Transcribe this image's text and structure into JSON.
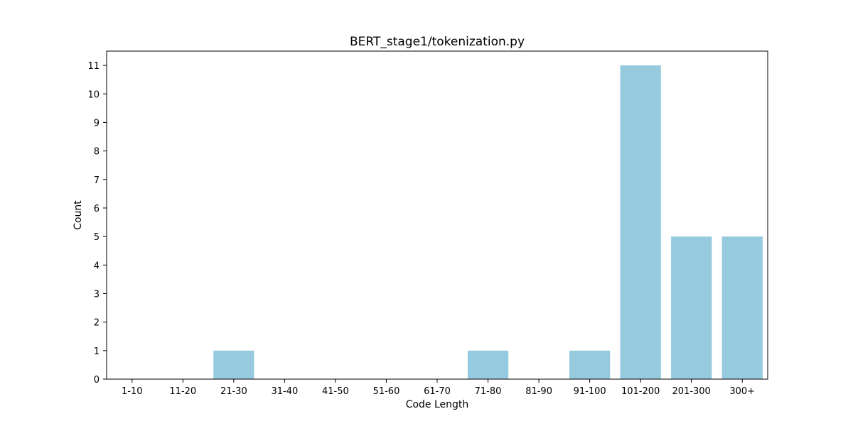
{
  "chart_data": {
    "type": "bar",
    "title": "BERT_stage1/tokenization.py",
    "xlabel": "Code Length",
    "ylabel": "Count",
    "categories": [
      "1-10",
      "11-20",
      "21-30",
      "31-40",
      "41-50",
      "51-60",
      "61-70",
      "71-80",
      "81-90",
      "91-100",
      "101-200",
      "201-300",
      "300+"
    ],
    "values": [
      0,
      0,
      1,
      0,
      0,
      0,
      0,
      1,
      0,
      1,
      11,
      5,
      5
    ],
    "ylim": [
      0,
      11.5
    ],
    "yticks": [
      "0",
      "1",
      "2",
      "3",
      "4",
      "5",
      "6",
      "7",
      "8",
      "9",
      "10",
      "11"
    ],
    "grid": false,
    "colors": {
      "bar": "#96cade",
      "axis": "#000000",
      "background": "#ffffff"
    }
  }
}
